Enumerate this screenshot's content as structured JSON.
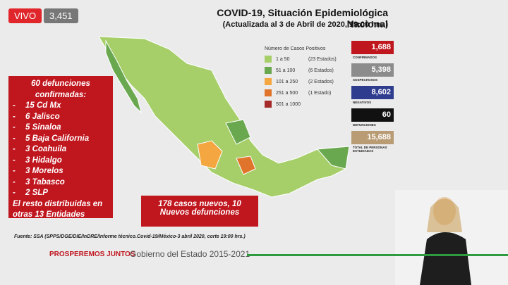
{
  "live": {
    "label": "VIVO",
    "viewers": "3,451"
  },
  "header": {
    "title": "COVID-19, Situación Epidemiológica Nacional",
    "subtitle": "(Actualizada al 3 de Abril de 2020, 19:00 hrs.)"
  },
  "legend": {
    "title": "Número de Casos Positivos",
    "items": [
      {
        "range": "1 a 50",
        "note": "(23 Estados)",
        "color": "#a6cf6a"
      },
      {
        "range": "51 a 100",
        "note": "(6 Estados)",
        "color": "#6aa84f"
      },
      {
        "range": "101 a 250",
        "note": "(2 Estados)",
        "color": "#f4a640"
      },
      {
        "range": "251 a 500",
        "note": "(1 Estado)",
        "color": "#e0742a"
      },
      {
        "range": "501 a 1000",
        "color": "#a52a2a"
      }
    ]
  },
  "stats": [
    {
      "value": "1,688",
      "label": "CONFIRMADOS",
      "color": "#c0161e"
    },
    {
      "value": "5,398",
      "label": "SOSPECHOSOS",
      "color": "#8c8c8c"
    },
    {
      "value": "8,602",
      "label": "NEGATIVOS",
      "color": "#2f3d8f"
    },
    {
      "value": "60",
      "label": "DEFUNCIONES",
      "color": "#111111"
    },
    {
      "value": "15,688",
      "label": "TOTAL DE PERSONAS ESTUDIADAS",
      "color": "#b99c74"
    }
  ],
  "deaths": {
    "title": "60 defunciones confirmadas:",
    "items": [
      "15 Cd Mx",
      "6 Jalisco",
      "5 Sinaloa",
      "5 Baja California",
      "3 Coahuila",
      "3 Hidalgo",
      "3 Morelos",
      "3 Tabasco",
      "2 SLP"
    ],
    "footer": "El resto distribuidas en otras 13 Entidades"
  },
  "new_cases": "178 casos nuevos, 10 Nuevos defunciones",
  "source": "Fuente: SSA (SPPS/DGE/DIE/InDRE/Informe técnico.Covid-19/México-3 abril 2020, corte 19:00 hrs.)",
  "footer": {
    "slogan": "PROSPEREMOS JUNTOS",
    "government": "Gobierno del Estado 2015-2021"
  }
}
